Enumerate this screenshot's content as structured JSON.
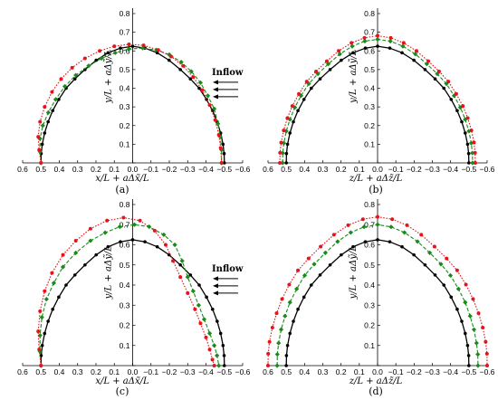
{
  "chart_data": [
    {
      "type": "line",
      "panel_label": "(a)",
      "xlabel": "x/L + aΔx̃/L",
      "ylabel": "y/L + aΔỹ/L",
      "xticks": [
        "0.6",
        "0.5",
        "0.4",
        "0.3",
        "0.2",
        "0.1",
        "0.0",
        "−0.1",
        "−0.2",
        "−0.3",
        "−0.4",
        "−0.5",
        "−0.6"
      ],
      "yticks": [
        "0.0",
        "0.1",
        "0.2",
        "0.3",
        "0.4",
        "0.5",
        "0.6",
        "0.7",
        "0.8"
      ],
      "xlim": [
        0.6,
        -0.6
      ],
      "ylim": [
        0,
        0.8
      ],
      "annotation": "Inflow",
      "series": [
        {
          "color": "#000000",
          "style": "solid",
          "marker": "circle",
          "x": [
            0.5,
            0.499,
            0.493,
            0.48,
            0.461,
            0.436,
            0.403,
            0.363,
            0.315,
            0.26,
            0.199,
            0.134,
            0.067,
            0.0,
            -0.067,
            -0.134,
            -0.199,
            -0.26,
            -0.315,
            -0.363,
            -0.403,
            -0.436,
            -0.461,
            -0.48,
            -0.493,
            -0.499,
            -0.5
          ],
          "y": [
            0.0,
            0.05,
            0.1,
            0.16,
            0.22,
            0.28,
            0.34,
            0.4,
            0.45,
            0.5,
            0.55,
            0.59,
            0.615,
            0.625,
            0.615,
            0.59,
            0.55,
            0.5,
            0.45,
            0.4,
            0.34,
            0.28,
            0.22,
            0.16,
            0.1,
            0.05,
            0.0
          ]
        },
        {
          "color": "#1a8a1a",
          "style": "dashed",
          "marker": "diamond",
          "x": [
            0.5,
            0.505,
            0.505,
            0.49,
            0.46,
            0.42,
            0.37,
            0.31,
            0.24,
            0.17,
            0.095,
            0.02,
            -0.055,
            -0.13,
            -0.2,
            -0.265,
            -0.32,
            -0.37,
            -0.41,
            -0.445,
            -0.465,
            -0.478,
            -0.485,
            -0.485
          ],
          "y": [
            0.0,
            0.06,
            0.13,
            0.2,
            0.27,
            0.34,
            0.41,
            0.47,
            0.52,
            0.56,
            0.59,
            0.61,
            0.615,
            0.605,
            0.58,
            0.54,
            0.49,
            0.43,
            0.36,
            0.29,
            0.21,
            0.14,
            0.07,
            0.0
          ]
        },
        {
          "color": "#e3141b",
          "style": "dotted",
          "marker": "circle",
          "x": [
            0.5,
            0.51,
            0.515,
            0.505,
            0.48,
            0.44,
            0.39,
            0.33,
            0.26,
            0.18,
            0.1,
            0.02,
            -0.06,
            -0.14,
            -0.21,
            -0.275,
            -0.33,
            -0.38,
            -0.42,
            -0.45,
            -0.47,
            -0.48,
            -0.485
          ],
          "y": [
            0.0,
            0.07,
            0.14,
            0.22,
            0.3,
            0.38,
            0.45,
            0.51,
            0.56,
            0.6,
            0.625,
            0.635,
            0.63,
            0.605,
            0.57,
            0.52,
            0.46,
            0.39,
            0.31,
            0.23,
            0.15,
            0.08,
            0.0
          ]
        }
      ]
    },
    {
      "type": "line",
      "panel_label": "(b)",
      "xlabel": "z/L + aΔz̃/L",
      "ylabel": "y/L + aΔỹ/L",
      "xticks": [
        "0.6",
        "0.5",
        "0.4",
        "0.3",
        "0.2",
        "0.1",
        "0.0",
        "−0.1",
        "−0.2",
        "−0.3",
        "−0.4",
        "−0.5",
        "−0.6"
      ],
      "yticks": [
        "0.0",
        "0.1",
        "0.2",
        "0.3",
        "0.4",
        "0.5",
        "0.6",
        "0.7",
        "0.8"
      ],
      "xlim": [
        0.6,
        -0.6
      ],
      "ylim": [
        0,
        0.8
      ],
      "series": [
        {
          "color": "#000000",
          "style": "solid",
          "marker": "circle",
          "x": [
            0.5,
            0.499,
            0.493,
            0.48,
            0.461,
            0.436,
            0.403,
            0.363,
            0.315,
            0.26,
            0.199,
            0.134,
            0.067,
            0.0,
            -0.067,
            -0.134,
            -0.199,
            -0.26,
            -0.315,
            -0.363,
            -0.403,
            -0.436,
            -0.461,
            -0.48,
            -0.493,
            -0.499,
            -0.5
          ],
          "y": [
            0.0,
            0.05,
            0.1,
            0.16,
            0.22,
            0.28,
            0.34,
            0.4,
            0.45,
            0.5,
            0.55,
            0.59,
            0.615,
            0.625,
            0.615,
            0.59,
            0.55,
            0.5,
            0.45,
            0.4,
            0.34,
            0.28,
            0.22,
            0.16,
            0.1,
            0.05,
            0.0
          ]
        },
        {
          "color": "#1a8a1a",
          "style": "dashed",
          "marker": "diamond",
          "x": [
            0.52,
            0.519,
            0.513,
            0.5,
            0.48,
            0.453,
            0.419,
            0.377,
            0.327,
            0.27,
            0.207,
            0.139,
            0.07,
            0.0,
            -0.07,
            -0.139,
            -0.207,
            -0.27,
            -0.327,
            -0.377,
            -0.419,
            -0.453,
            -0.48,
            -0.5,
            -0.513,
            -0.519,
            -0.52
          ],
          "y": [
            0.0,
            0.053,
            0.106,
            0.17,
            0.233,
            0.297,
            0.36,
            0.424,
            0.477,
            0.53,
            0.583,
            0.625,
            0.652,
            0.662,
            0.652,
            0.625,
            0.583,
            0.53,
            0.477,
            0.424,
            0.36,
            0.297,
            0.233,
            0.17,
            0.106,
            0.053,
            0.0
          ]
        },
        {
          "color": "#e3141b",
          "style": "dotted",
          "marker": "circle",
          "x": [
            0.535,
            0.534,
            0.528,
            0.514,
            0.494,
            0.467,
            0.431,
            0.388,
            0.337,
            0.278,
            0.213,
            0.143,
            0.072,
            0.0,
            -0.072,
            -0.143,
            -0.213,
            -0.278,
            -0.337,
            -0.388,
            -0.431,
            -0.467,
            -0.494,
            -0.514,
            -0.528,
            -0.534,
            -0.535
          ],
          "y": [
            0.0,
            0.054,
            0.109,
            0.174,
            0.24,
            0.305,
            0.37,
            0.436,
            0.49,
            0.545,
            0.6,
            0.643,
            0.67,
            0.681,
            0.67,
            0.643,
            0.6,
            0.545,
            0.49,
            0.436,
            0.37,
            0.305,
            0.24,
            0.174,
            0.109,
            0.054,
            0.0
          ]
        }
      ]
    },
    {
      "type": "line",
      "panel_label": "(c)",
      "xlabel": "x/L + aΔx̃/L",
      "ylabel": "y/L + aΔỹ/L",
      "xticks": [
        "0.6",
        "0.5",
        "0.4",
        "0.3",
        "0.2",
        "0.1",
        "0.0",
        "−0.1",
        "−0.2",
        "−0.3",
        "−0.4",
        "−0.5",
        "−0.6"
      ],
      "yticks": [
        "0.0",
        "0.1",
        "0.2",
        "0.3",
        "0.4",
        "0.5",
        "0.6",
        "0.7",
        "0.8"
      ],
      "xlim": [
        0.6,
        -0.6
      ],
      "ylim": [
        0,
        0.8
      ],
      "annotation": "Inflow",
      "series": [
        {
          "color": "#000000",
          "style": "solid",
          "marker": "circle",
          "x": [
            0.5,
            0.499,
            0.493,
            0.48,
            0.461,
            0.436,
            0.403,
            0.363,
            0.315,
            0.26,
            0.199,
            0.134,
            0.067,
            0.0,
            -0.067,
            -0.134,
            -0.199,
            -0.26,
            -0.315,
            -0.363,
            -0.403,
            -0.436,
            -0.461,
            -0.48,
            -0.493,
            -0.499,
            -0.5
          ],
          "y": [
            0.0,
            0.05,
            0.1,
            0.16,
            0.22,
            0.28,
            0.34,
            0.4,
            0.45,
            0.5,
            0.55,
            0.59,
            0.615,
            0.625,
            0.615,
            0.59,
            0.55,
            0.5,
            0.45,
            0.4,
            0.34,
            0.28,
            0.22,
            0.16,
            0.1,
            0.05,
            0.0
          ]
        },
        {
          "color": "#1a8a1a",
          "style": "dashed",
          "marker": "diamond",
          "x": [
            0.5,
            0.505,
            0.505,
            0.495,
            0.47,
            0.43,
            0.38,
            0.31,
            0.23,
            0.15,
            0.07,
            -0.01,
            -0.09,
            -0.17,
            -0.23,
            -0.27,
            -0.3,
            -0.33,
            -0.36,
            -0.39,
            -0.42,
            -0.445,
            -0.46,
            -0.47
          ],
          "y": [
            0.0,
            0.07,
            0.15,
            0.24,
            0.33,
            0.41,
            0.49,
            0.56,
            0.62,
            0.66,
            0.69,
            0.7,
            0.69,
            0.65,
            0.6,
            0.52,
            0.44,
            0.37,
            0.3,
            0.23,
            0.16,
            0.1,
            0.05,
            0.0
          ]
        },
        {
          "color": "#e3141b",
          "style": "dotted",
          "marker": "circle",
          "x": [
            0.5,
            0.51,
            0.515,
            0.505,
            0.48,
            0.44,
            0.38,
            0.31,
            0.23,
            0.14,
            0.05,
            -0.04,
            -0.12,
            -0.18,
            -0.22,
            -0.26,
            -0.3,
            -0.34,
            -0.37,
            -0.4,
            -0.42,
            -0.435,
            -0.445
          ],
          "y": [
            0.0,
            0.08,
            0.17,
            0.27,
            0.37,
            0.46,
            0.55,
            0.62,
            0.68,
            0.72,
            0.735,
            0.72,
            0.67,
            0.6,
            0.52,
            0.44,
            0.36,
            0.28,
            0.21,
            0.14,
            0.08,
            0.03,
            0.0
          ]
        }
      ]
    },
    {
      "type": "line",
      "panel_label": "(d)",
      "xlabel": "z/L + aΔz̃/L",
      "ylabel": "y/L + aΔỹ/L",
      "xticks": [
        "0.6",
        "0.5",
        "0.4",
        "0.3",
        "0.2",
        "0.1",
        "0.0",
        "−0.1",
        "−0.2",
        "−0.3",
        "−0.4",
        "−0.5",
        "−0.6"
      ],
      "yticks": [
        "0.0",
        "0.1",
        "0.2",
        "0.3",
        "0.4",
        "0.5",
        "0.6",
        "0.7",
        "0.8"
      ],
      "xlim": [
        0.6,
        -0.6
      ],
      "ylim": [
        0,
        0.8
      ],
      "series": [
        {
          "color": "#000000",
          "style": "solid",
          "marker": "circle",
          "x": [
            0.5,
            0.499,
            0.493,
            0.48,
            0.461,
            0.436,
            0.403,
            0.363,
            0.315,
            0.26,
            0.199,
            0.134,
            0.067,
            0.0,
            -0.067,
            -0.134,
            -0.199,
            -0.26,
            -0.315,
            -0.363,
            -0.403,
            -0.436,
            -0.461,
            -0.48,
            -0.493,
            -0.499,
            -0.5
          ],
          "y": [
            0.0,
            0.05,
            0.1,
            0.16,
            0.22,
            0.28,
            0.34,
            0.4,
            0.45,
            0.5,
            0.55,
            0.59,
            0.615,
            0.625,
            0.615,
            0.59,
            0.55,
            0.5,
            0.45,
            0.4,
            0.34,
            0.28,
            0.22,
            0.16,
            0.1,
            0.05,
            0.0
          ]
        },
        {
          "color": "#1a8a1a",
          "style": "dashed",
          "marker": "diamond",
          "x": [
            0.55,
            0.549,
            0.542,
            0.528,
            0.507,
            0.48,
            0.443,
            0.399,
            0.347,
            0.286,
            0.219,
            0.147,
            0.074,
            0.0,
            -0.074,
            -0.147,
            -0.219,
            -0.286,
            -0.347,
            -0.399,
            -0.443,
            -0.48,
            -0.507,
            -0.528,
            -0.542,
            -0.549,
            -0.55
          ],
          "y": [
            0.0,
            0.056,
            0.112,
            0.179,
            0.246,
            0.314,
            0.381,
            0.448,
            0.504,
            0.56,
            0.616,
            0.661,
            0.689,
            0.7,
            0.689,
            0.661,
            0.616,
            0.56,
            0.504,
            0.448,
            0.381,
            0.314,
            0.246,
            0.179,
            0.112,
            0.056,
            0.0
          ]
        },
        {
          "color": "#e3141b",
          "style": "dotted",
          "marker": "circle",
          "x": [
            0.6,
            0.599,
            0.592,
            0.576,
            0.553,
            0.523,
            0.484,
            0.436,
            0.378,
            0.312,
            0.239,
            0.161,
            0.08,
            0.0,
            -0.08,
            -0.161,
            -0.239,
            -0.312,
            -0.378,
            -0.436,
            -0.484,
            -0.523,
            -0.553,
            -0.576,
            -0.592,
            -0.599,
            -0.6
          ],
          "y": [
            0.0,
            0.059,
            0.118,
            0.189,
            0.26,
            0.331,
            0.402,
            0.473,
            0.532,
            0.591,
            0.65,
            0.697,
            0.727,
            0.739,
            0.727,
            0.697,
            0.65,
            0.591,
            0.532,
            0.473,
            0.402,
            0.331,
            0.26,
            0.189,
            0.118,
            0.059,
            0.0
          ]
        }
      ]
    }
  ]
}
